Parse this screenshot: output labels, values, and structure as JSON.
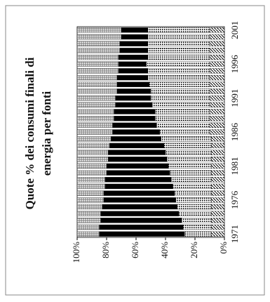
{
  "chart_data": {
    "type": "stacked-bar",
    "title": [
      "Quote % dei consumi finali di",
      "energia per fonti"
    ],
    "categories": [
      "1971",
      null,
      null,
      null,
      null,
      "1976",
      null,
      null,
      null,
      null,
      "1981",
      null,
      null,
      null,
      null,
      "1986",
      null,
      null,
      null,
      null,
      "1991",
      null,
      null,
      null,
      null,
      "1996",
      null,
      null,
      null,
      null,
      "2001"
    ],
    "series": [
      {
        "color": "#000000",
        "pattern": "hatch",
        "values": [
          9,
          9,
          9,
          9,
          9,
          9,
          9,
          9,
          9,
          9,
          9,
          9,
          9,
          9,
          9,
          10,
          10,
          10,
          10,
          10,
          10,
          10,
          10,
          10,
          10,
          10,
          10,
          10,
          10,
          10,
          10
        ]
      },
      {
        "color": "#000000",
        "pattern": "dots",
        "values": [
          18,
          19,
          20,
          22,
          23,
          24,
          25,
          26,
          27,
          28,
          29,
          30,
          31,
          32,
          34,
          34,
          36,
          37,
          37,
          39,
          40,
          40,
          41,
          42,
          42,
          43,
          42,
          42,
          42,
          42,
          42
        ]
      },
      {
        "color": "#000000",
        "pattern": "solid",
        "values": [
          58,
          57,
          55,
          53,
          51,
          49,
          48,
          46,
          45,
          43,
          42,
          40,
          39,
          37,
          34,
          32,
          30,
          28,
          28,
          25,
          24,
          23,
          22,
          21,
          20,
          19,
          20,
          19,
          19,
          18,
          18
        ]
      },
      {
        "color": "#000000",
        "pattern": "cross",
        "values": [
          15,
          15,
          16,
          16,
          17,
          18,
          18,
          19,
          19,
          20,
          20,
          21,
          21,
          22,
          23,
          24,
          24,
          25,
          25,
          26,
          26,
          27,
          27,
          27,
          28,
          28,
          28,
          29,
          29,
          30,
          30
        ]
      }
    ],
    "ylim": [
      0,
      100
    ],
    "yticks": [
      {
        "value": 0,
        "label": "0%"
      },
      {
        "value": 20,
        "label": "20%"
      },
      {
        "value": 40,
        "label": "40%"
      },
      {
        "value": 60,
        "label": "60%"
      },
      {
        "value": 80,
        "label": "80%"
      },
      {
        "value": 100,
        "label": "100%"
      }
    ],
    "rotated": true
  }
}
